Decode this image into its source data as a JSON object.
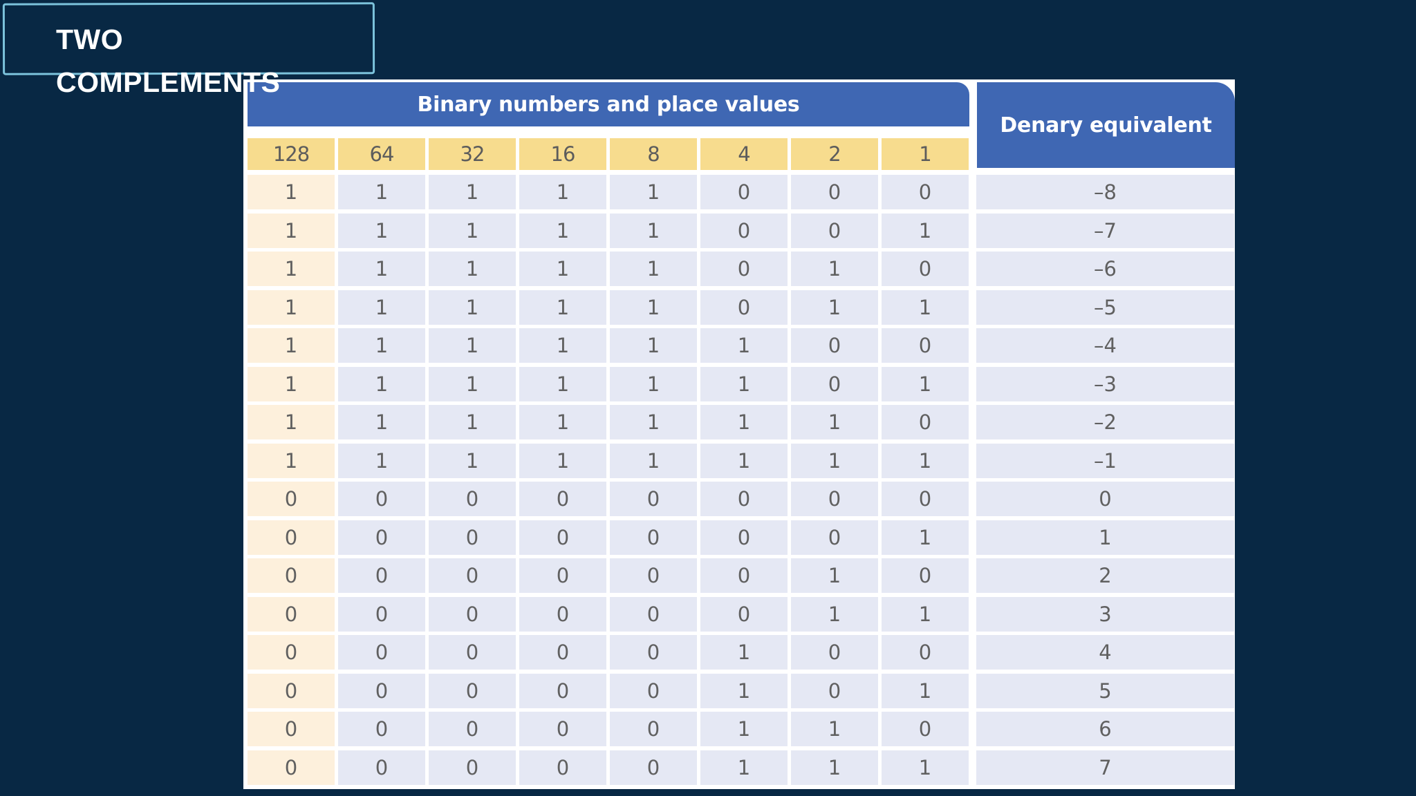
{
  "slide": {
    "title": "TWO COMPLEMENTS"
  },
  "table": {
    "binary_header": "Binary numbers and place values",
    "denary_header": "Denary equivalent",
    "place_values": [
      "128",
      "64",
      "32",
      "16",
      "8",
      "4",
      "2",
      "1"
    ],
    "rows": [
      {
        "bits": [
          "1",
          "1",
          "1",
          "1",
          "1",
          "0",
          "0",
          "0"
        ],
        "denary": "–8"
      },
      {
        "bits": [
          "1",
          "1",
          "1",
          "1",
          "1",
          "0",
          "0",
          "1"
        ],
        "denary": "–7"
      },
      {
        "bits": [
          "1",
          "1",
          "1",
          "1",
          "1",
          "0",
          "1",
          "0"
        ],
        "denary": "–6"
      },
      {
        "bits": [
          "1",
          "1",
          "1",
          "1",
          "1",
          "0",
          "1",
          "1"
        ],
        "denary": "–5"
      },
      {
        "bits": [
          "1",
          "1",
          "1",
          "1",
          "1",
          "1",
          "0",
          "0"
        ],
        "denary": "–4"
      },
      {
        "bits": [
          "1",
          "1",
          "1",
          "1",
          "1",
          "1",
          "0",
          "1"
        ],
        "denary": "–3"
      },
      {
        "bits": [
          "1",
          "1",
          "1",
          "1",
          "1",
          "1",
          "1",
          "0"
        ],
        "denary": "–2"
      },
      {
        "bits": [
          "1",
          "1",
          "1",
          "1",
          "1",
          "1",
          "1",
          "1"
        ],
        "denary": "–1"
      },
      {
        "bits": [
          "0",
          "0",
          "0",
          "0",
          "0",
          "0",
          "0",
          "0"
        ],
        "denary": "0"
      },
      {
        "bits": [
          "0",
          "0",
          "0",
          "0",
          "0",
          "0",
          "0",
          "1"
        ],
        "denary": "1"
      },
      {
        "bits": [
          "0",
          "0",
          "0",
          "0",
          "0",
          "0",
          "1",
          "0"
        ],
        "denary": "2"
      },
      {
        "bits": [
          "0",
          "0",
          "0",
          "0",
          "0",
          "0",
          "1",
          "1"
        ],
        "denary": "3"
      },
      {
        "bits": [
          "0",
          "0",
          "0",
          "0",
          "0",
          "1",
          "0",
          "0"
        ],
        "denary": "4"
      },
      {
        "bits": [
          "0",
          "0",
          "0",
          "0",
          "0",
          "1",
          "0",
          "1"
        ],
        "denary": "5"
      },
      {
        "bits": [
          "0",
          "0",
          "0",
          "0",
          "0",
          "1",
          "1",
          "0"
        ],
        "denary": "6"
      },
      {
        "bits": [
          "0",
          "0",
          "0",
          "0",
          "0",
          "1",
          "1",
          "1"
        ],
        "denary": "7"
      }
    ]
  },
  "colors": {
    "background": "#082844",
    "title_border": "#7cc3dc",
    "header_blue": "#3f67b3",
    "place_value_yellow": "#f7dc8e",
    "first_column_cream": "#fdf0dc",
    "cell_lavender": "#e5e8f4"
  }
}
